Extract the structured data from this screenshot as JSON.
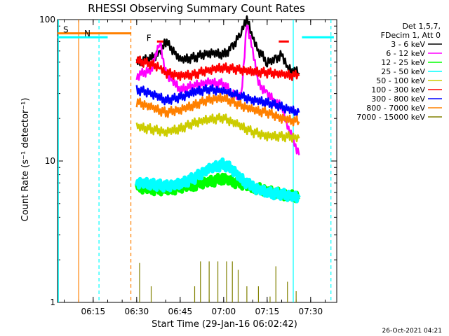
{
  "chart_data": {
    "type": "line",
    "title": "RHESSI Observing Summary Count Rates",
    "xlabel": "Start Time (29-Jan-16 06:02:42)",
    "ylabel": "Count Rate (s⁻¹ detector⁻¹)",
    "y_scale": "log",
    "ylim": [
      1,
      100
    ],
    "xlim": [
      "06:02:42",
      "07:39:00"
    ],
    "x_ticks": [
      "06:15",
      "06:30",
      "06:45",
      "07:00",
      "07:15",
      "07:30"
    ],
    "y_ticks": [
      "1",
      "10",
      "100"
    ],
    "grid": false,
    "legend_position": "top-right",
    "legend_header": [
      "Det 1,5,7,",
      "FDecim 1, Att 0"
    ],
    "series": [
      {
        "name": "3 - 6 keV",
        "color": "#000000",
        "x": [
          "06:30",
          "06:35",
          "06:38",
          "06:40",
          "06:45",
          "06:50",
          "06:55",
          "07:00",
          "07:03",
          "07:06",
          "07:08",
          "07:10",
          "07:12",
          "07:15",
          "07:18",
          "07:20",
          "07:22",
          "07:26"
        ],
        "values": [
          50,
          53,
          58,
          70,
          52,
          54,
          58,
          57,
          63,
          82,
          100,
          75,
          60,
          50,
          52,
          58,
          45,
          42
        ]
      },
      {
        "name": "6 - 12 keV",
        "color": "#ff00ff",
        "x": [
          "06:30",
          "06:35",
          "06:38",
          "06:40",
          "06:45",
          "06:50",
          "06:55",
          "07:00",
          "07:03",
          "07:06",
          "07:08",
          "07:10",
          "07:12",
          "07:15",
          "07:18",
          "07:20",
          "07:22",
          "07:26"
        ],
        "values": [
          40,
          44,
          70,
          42,
          32,
          34,
          36,
          35,
          30,
          28,
          95,
          60,
          35,
          30,
          26,
          24,
          18,
          11
        ]
      },
      {
        "name": "12 - 25 keV",
        "color": "#00ff00",
        "x": [
          "06:30",
          "06:40",
          "06:50",
          "07:00",
          "07:10",
          "07:20",
          "07:26"
        ],
        "values": [
          6.5,
          6.2,
          6.8,
          7.5,
          6.5,
          5.8,
          5.6
        ]
      },
      {
        "name": "25 - 50 keV",
        "color": "#00ffff",
        "x": [
          "06:30",
          "06:35",
          "06:40",
          "06:45",
          "06:50",
          "06:55",
          "07:00",
          "07:03",
          "07:06",
          "07:10",
          "07:15",
          "07:20",
          "07:26"
        ],
        "values": [
          7.0,
          6.9,
          6.6,
          6.9,
          7.6,
          8.8,
          9.5,
          8.7,
          7.5,
          6.5,
          6.0,
          5.8,
          5.5
        ]
      },
      {
        "name": "50 - 100 keV",
        "color": "#cccc00",
        "x": [
          "06:30",
          "06:35",
          "06:40",
          "06:45",
          "06:50",
          "06:55",
          "07:00",
          "07:05",
          "07:10",
          "07:15",
          "07:20",
          "07:26"
        ],
        "values": [
          17.5,
          16.8,
          16.0,
          17.0,
          18.5,
          19.8,
          20.0,
          18.0,
          16.0,
          15.0,
          15.0,
          14.5
        ]
      },
      {
        "name": "100 - 300 keV",
        "color": "#ff0000",
        "x": [
          "06:30",
          "06:35",
          "06:38",
          "06:40",
          "06:45",
          "06:50",
          "06:55",
          "07:00",
          "07:05",
          "07:10",
          "07:15",
          "07:20",
          "07:26"
        ],
        "values": [
          52,
          48,
          46,
          42,
          40,
          41,
          44,
          46,
          44,
          43,
          42,
          41,
          40
        ]
      },
      {
        "name": "300 - 800 keV",
        "color": "#0000ff",
        "x": [
          "06:30",
          "06:35",
          "06:40",
          "06:45",
          "06:50",
          "06:55",
          "07:00",
          "07:05",
          "07:10",
          "07:15",
          "07:20",
          "07:26"
        ],
        "values": [
          32,
          30,
          27,
          28,
          31,
          32,
          31,
          29,
          27,
          26,
          24,
          22
        ]
      },
      {
        "name": "800 - 7000 keV",
        "color": "#ff8000",
        "x": [
          "06:30",
          "06:35",
          "06:40",
          "06:45",
          "06:50",
          "06:55",
          "07:00",
          "07:05",
          "07:10",
          "07:15",
          "07:20",
          "07:26"
        ],
        "values": [
          26,
          24,
          22,
          23,
          25,
          27,
          28,
          25,
          23,
          22,
          20,
          19
        ]
      },
      {
        "name": "7000 - 15000 keV",
        "color": "#808000",
        "x": [
          "06:31",
          "06:35",
          "06:50",
          "06:52",
          "06:55",
          "06:58",
          "07:01",
          "07:03",
          "07:05",
          "07:08",
          "07:12",
          "07:16",
          "07:18",
          "07:22",
          "07:25"
        ],
        "values": [
          1.9,
          1.3,
          1.3,
          1.95,
          1.95,
          1.95,
          1.95,
          1.95,
          1.7,
          1.3,
          1.3,
          1.1,
          1.8,
          1.4,
          1.2
        ]
      }
    ],
    "flags": {
      "S": {
        "label": "S",
        "color": "#ff8000",
        "x_range": [
          "06:02:42",
          "06:28:00"
        ],
        "level": 80
      },
      "N": {
        "label": "N",
        "color": "#00ffff",
        "x_range": [
          "06:02:42",
          "06:20:00"
        ],
        "level": 75
      },
      "N2": {
        "label": "",
        "color": "#00ffff",
        "x_range": [
          "07:27:00",
          "07:38:00"
        ],
        "level": 75
      },
      "F": {
        "label": "F",
        "color": "#ff0000",
        "x_range": [
          "06:37:00",
          "06:40:00"
        ],
        "level": 70
      },
      "F2": {
        "label": "",
        "color": "#ff0000",
        "x_range": [
          "07:19:00",
          "07:22:30"
        ],
        "level": 70
      }
    },
    "vlines": [
      {
        "x": "06:10:00",
        "color": "#ff8000",
        "style": "solid"
      },
      {
        "x": "06:17:00",
        "color": "#00ffff",
        "style": "dashed"
      },
      {
        "x": "06:28:00",
        "color": "#ff8000",
        "style": "dashed"
      },
      {
        "x": "07:24:00",
        "color": "#00ffff",
        "style": "solid"
      },
      {
        "x": "07:37:00",
        "color": "#00ffff",
        "style": "dashed"
      },
      {
        "x": "06:03:00",
        "color": "#00ffff",
        "style": "solid"
      }
    ],
    "footer_text": "26-Oct-2021 04:21"
  }
}
